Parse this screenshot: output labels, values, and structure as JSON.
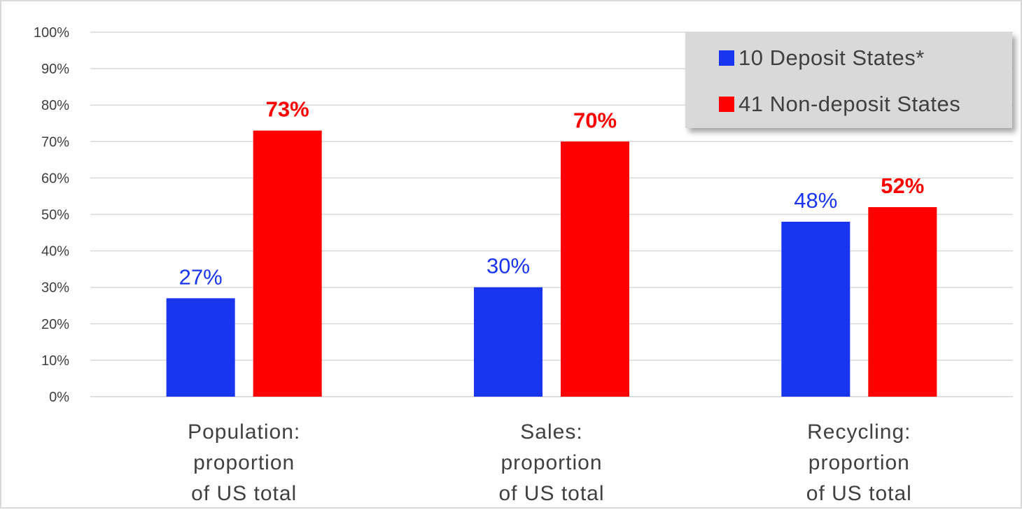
{
  "chart_data": {
    "type": "bar",
    "categories": [
      [
        "Population:",
        "proportion",
        "of US total"
      ],
      [
        "Sales:",
        "proportion",
        "of US total"
      ],
      [
        "Recycling:",
        "proportion",
        "of US total"
      ]
    ],
    "series": [
      {
        "name": "10 Deposit States*",
        "color": "#1a35f0",
        "values": [
          27,
          30,
          48
        ],
        "labels": [
          "27%",
          "30%",
          "48%"
        ],
        "label_bold": false
      },
      {
        "name": "41 Non-deposit States",
        "color": "#ff0000",
        "values": [
          73,
          70,
          52
        ],
        "labels": [
          "73%",
          "70%",
          "52%"
        ],
        "label_bold": true
      }
    ],
    "ylim": [
      0,
      100
    ],
    "yticks": [
      "0%",
      "10%",
      "20%",
      "30%",
      "40%",
      "50%",
      "60%",
      "70%",
      "80%",
      "90%",
      "100%"
    ],
    "grid": true,
    "legend_position": "top-right",
    "legend_background": "#d9d9d9",
    "gridline_color": "#d9d9d9"
  }
}
